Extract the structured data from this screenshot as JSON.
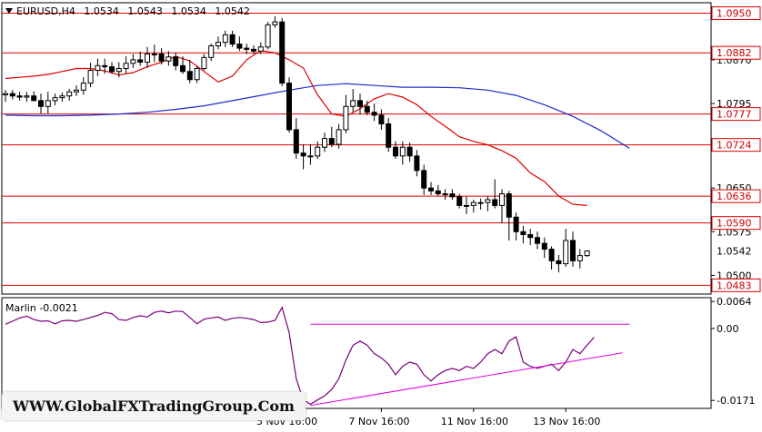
{
  "chart_data": {
    "type": "candlestick",
    "header": {
      "symbol": "EURUSD,H4",
      "ohlc": [
        "1.0534",
        "1.0543",
        "1.0534",
        "1.0542"
      ]
    },
    "price_axis": {
      "ylim": [
        1.0468,
        1.0968
      ],
      "tick_labels": [
        "1.0950",
        "1.0870",
        "1.0795",
        "1.0720",
        "1.0650",
        "1.0575",
        "1.0500"
      ],
      "ticks": [
        1.095,
        1.087,
        1.0795,
        1.072,
        1.065,
        1.0575,
        1.05
      ]
    },
    "levels": [
      {
        "label": "1.0950",
        "value": 1.095
      },
      {
        "label": "1.0882",
        "value": 1.0882
      },
      {
        "label": "1.0777",
        "value": 1.0777
      },
      {
        "label": "1.0724",
        "value": 1.0724
      },
      {
        "label": "1.0636",
        "value": 1.0636
      },
      {
        "label": "1.0590",
        "value": 1.059
      },
      {
        "label": "1.0483",
        "value": 1.0483
      }
    ],
    "current_price": {
      "label": "1.0542",
      "value": 1.0542
    },
    "candles": {
      "open": [
        1.081,
        1.0812,
        1.0808,
        1.0806,
        1.0808,
        1.08,
        1.079,
        1.08,
        1.0805,
        1.0808,
        1.0815,
        1.0818,
        1.083,
        1.0852,
        1.086,
        1.0858,
        1.085,
        1.0855,
        1.0864,
        1.087,
        1.0866,
        1.088,
        1.088,
        1.0868,
        1.0875,
        1.086,
        1.085,
        1.0836,
        1.0855,
        1.0874,
        1.0894,
        1.09,
        1.0913,
        1.0897,
        1.089,
        1.0888,
        1.0885,
        1.0892,
        1.093,
        1.0935,
        1.083,
        1.075,
        1.071,
        1.0705,
        1.0705,
        1.072,
        1.0735,
        1.0725,
        1.075,
        1.079,
        1.08,
        1.079,
        1.078,
        1.0775,
        1.076,
        1.072,
        1.0705,
        1.072,
        1.0705,
        1.068,
        1.065,
        1.0645,
        1.064,
        1.064,
        1.0635,
        1.062,
        1.062,
        1.0625,
        1.0625,
        1.063,
        1.062,
        1.064,
        1.06,
        1.0575,
        1.057,
        1.0565,
        1.0555,
        1.0545,
        1.0525,
        1.052,
        1.056,
        1.0525,
        1.0534
      ],
      "high": [
        1.0818,
        1.0818,
        1.0815,
        1.0815,
        1.0816,
        1.0812,
        1.0815,
        1.0812,
        1.0814,
        1.082,
        1.0826,
        1.084,
        1.0865,
        1.0872,
        1.0872,
        1.0866,
        1.0866,
        1.0876,
        1.088,
        1.0884,
        1.0892,
        1.0896,
        1.089,
        1.0885,
        1.0882,
        1.0876,
        1.087,
        1.086,
        1.088,
        1.0898,
        1.091,
        1.092,
        1.092,
        1.091,
        1.0898,
        1.0895,
        1.09,
        1.0935,
        1.0945,
        1.0942,
        1.084,
        1.077,
        1.0725,
        1.0725,
        1.073,
        1.0745,
        1.0755,
        1.076,
        1.081,
        1.082,
        1.0812,
        1.08,
        1.0795,
        1.0785,
        1.077,
        1.073,
        1.073,
        1.0728,
        1.0715,
        1.069,
        1.066,
        1.0655,
        1.0648,
        1.0648,
        1.064,
        1.0635,
        1.063,
        1.0632,
        1.0636,
        1.0665,
        1.0648,
        1.0645,
        1.0608,
        1.0585,
        1.058,
        1.0575,
        1.0565,
        1.055,
        1.0535,
        1.058,
        1.0575,
        1.0545,
        1.0543
      ],
      "low": [
        1.0798,
        1.0802,
        1.08,
        1.0798,
        1.08,
        1.0778,
        1.0778,
        1.0792,
        1.0798,
        1.08,
        1.0808,
        1.081,
        1.0823,
        1.0842,
        1.0846,
        1.0846,
        1.084,
        1.0846,
        1.0856,
        1.086,
        1.0856,
        1.0866,
        1.0862,
        1.086,
        1.0852,
        1.0846,
        1.083,
        1.083,
        1.0852,
        1.0868,
        1.0888,
        1.0892,
        1.0892,
        1.0885,
        1.088,
        1.088,
        1.088,
        1.0888,
        1.0925,
        1.0825,
        1.0745,
        1.07,
        1.0682,
        1.069,
        1.07,
        1.0712,
        1.072,
        1.0718,
        1.0744,
        1.078,
        1.0776,
        1.0775,
        1.0765,
        1.075,
        1.0712,
        1.07,
        1.069,
        1.0695,
        1.067,
        1.0638,
        1.0638,
        1.0636,
        1.063,
        1.063,
        1.0615,
        1.0605,
        1.0608,
        1.0613,
        1.061,
        1.0615,
        1.059,
        1.056,
        1.056,
        1.0555,
        1.0552,
        1.0545,
        1.053,
        1.051,
        1.0505,
        1.0515,
        1.0515,
        1.0512,
        1.0532
      ],
      "close": [
        1.0812,
        1.0808,
        1.0806,
        1.0808,
        1.08,
        1.079,
        1.08,
        1.0805,
        1.0808,
        1.0815,
        1.0818,
        1.083,
        1.0852,
        1.086,
        1.0858,
        1.085,
        1.0855,
        1.0864,
        1.087,
        1.0866,
        1.088,
        1.088,
        1.0868,
        1.0875,
        1.086,
        1.085,
        1.0836,
        1.0855,
        1.0874,
        1.0894,
        1.09,
        1.0913,
        1.0897,
        1.089,
        1.0888,
        1.0885,
        1.0892,
        1.093,
        1.0935,
        1.083,
        1.075,
        1.071,
        1.0705,
        1.0705,
        1.072,
        1.0735,
        1.0725,
        1.075,
        1.079,
        1.08,
        1.079,
        1.078,
        1.0775,
        1.076,
        1.072,
        1.0705,
        1.072,
        1.0705,
        1.068,
        1.065,
        1.0645,
        1.064,
        1.064,
        1.0635,
        1.062,
        1.062,
        1.0625,
        1.0625,
        1.063,
        1.062,
        1.064,
        1.06,
        1.0575,
        1.057,
        1.0565,
        1.0555,
        1.0545,
        1.0525,
        1.052,
        1.056,
        1.0525,
        1.0534,
        1.0542
      ]
    },
    "ma_red": [
      1.0838,
      1.084,
      1.0842,
      1.0845,
      1.085,
      1.0855,
      1.0855,
      1.0851,
      1.0844,
      1.0848,
      1.0858,
      1.0866,
      1.0876,
      1.0868,
      1.085,
      1.0832,
      1.0842,
      1.087,
      1.0886,
      1.0882,
      1.087,
      1.0856,
      1.081,
      1.0777,
      1.0773,
      1.0786,
      1.0803,
      1.0812,
      1.0806,
      1.0793,
      1.0773,
      1.0756,
      1.0738,
      1.073,
      1.0724,
      1.0714,
      1.0701,
      1.0676,
      1.0661,
      1.0636,
      1.0622,
      1.062
    ],
    "ma_blue": [
      1.0775,
      1.0774,
      1.0774,
      1.0775,
      1.0777,
      1.078,
      1.0785,
      1.0791,
      1.08,
      1.0809,
      1.0818,
      1.0826,
      1.0829,
      1.0826,
      1.0823,
      1.0823,
      1.0822,
      1.0818,
      1.0809,
      1.0793,
      1.0773,
      1.0748,
      1.0718
    ],
    "time_labels": [
      "5 Nov 16:00",
      "7 Nov 16:00",
      "11 Nov 16:00",
      "13 Nov 16:00"
    ],
    "time_label_candles": [
      40,
      53,
      66,
      79
    ],
    "indicator": {
      "title": "Marlin -0.0021",
      "ylim": [
        -0.019,
        0.0073
      ],
      "tick_labels": [
        "0.0064",
        "0.00",
        "-0.0171"
      ],
      "ticks": [
        0.0064,
        0.0,
        -0.0171
      ],
      "values": [
        0.001,
        0.0017,
        0.0025,
        0.0029,
        0.0021,
        0.0017,
        0.0018,
        0.0011,
        0.0018,
        0.0019,
        0.0017,
        0.0021,
        0.0026,
        0.0031,
        0.0038,
        0.0035,
        0.0021,
        0.0019,
        0.0026,
        0.003,
        0.0027,
        0.0038,
        0.0041,
        0.0037,
        0.0041,
        0.004,
        0.0026,
        0.0011,
        0.0022,
        0.0025,
        0.0027,
        0.0019,
        0.0024,
        0.0026,
        0.0024,
        0.0021,
        0.0014,
        0.0015,
        0.0019,
        0.005,
        -0.001,
        -0.012,
        -0.017,
        -0.018,
        -0.017,
        -0.016,
        -0.0145,
        -0.012,
        -0.0075,
        -0.004,
        -0.003,
        -0.004,
        -0.006,
        -0.007,
        -0.0085,
        -0.011,
        -0.009,
        -0.008,
        -0.0085,
        -0.011,
        -0.0125,
        -0.011,
        -0.01,
        -0.0095,
        -0.01,
        -0.009,
        -0.0095,
        -0.008,
        -0.006,
        -0.005,
        -0.006,
        -0.003,
        -0.002,
        -0.008,
        -0.009,
        -0.0095,
        -0.009,
        -0.0085,
        -0.01,
        -0.008,
        -0.005,
        -0.006,
        -0.004,
        -0.0021
      ],
      "trend_flat": [
        0.001,
        0.001
      ],
      "trend_rising": [
        -0.0183,
        -0.0058
      ],
      "colors": {
        "line": "#7a007a",
        "trend": "#e000e0"
      }
    },
    "watermark": "WWW.GlobalFXTradingGroup.Com",
    "colors": {
      "level": "#e00000",
      "ma_red": "#dd0000",
      "ma_blue": "#1a2ecc",
      "level_label_bg": "#e00000"
    }
  }
}
